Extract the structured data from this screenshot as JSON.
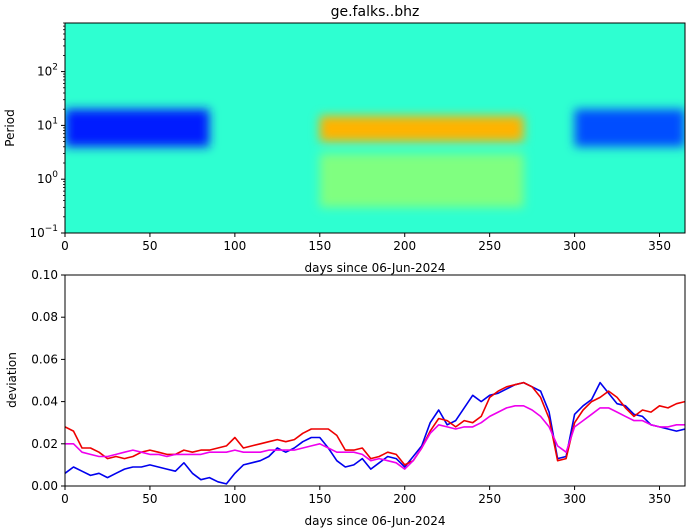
{
  "chart_data": [
    {
      "type": "heatmap",
      "title": "ge.falks..bhz",
      "xlabel": "days since 06-Jun-2024",
      "ylabel": "Period",
      "xlim": [
        0,
        365
      ],
      "ylim": [
        0.1,
        800
      ],
      "yscale": "log",
      "colormap": "jet",
      "x_ticks": [
        0,
        50,
        100,
        150,
        200,
        250,
        300,
        350
      ],
      "y_ticks": [
        {
          "value": 0.1,
          "base": "10",
          "exp": "−1"
        },
        {
          "value": 1,
          "base": "10",
          "exp": "0"
        },
        {
          "value": 10,
          "base": "10",
          "exp": "1"
        },
        {
          "value": 100,
          "base": "10",
          "exp": "2"
        }
      ],
      "features": [
        {
          "kind": "low",
          "x": [
            0,
            85
          ],
          "y": [
            4,
            20
          ],
          "level": 0.15
        },
        {
          "kind": "low",
          "x": [
            300,
            365
          ],
          "y": [
            4,
            20
          ],
          "level": 0.2
        },
        {
          "kind": "high",
          "x": [
            150,
            270
          ],
          "y": [
            5,
            15
          ],
          "level": 0.7
        },
        {
          "kind": "high",
          "x": [
            150,
            270
          ],
          "y": [
            0.3,
            3
          ],
          "level": 0.5
        }
      ]
    },
    {
      "type": "line",
      "xlabel": "days since 06-Jun-2024",
      "ylabel": "deviation",
      "xlim": [
        0,
        365
      ],
      "ylim": [
        0.0,
        0.1
      ],
      "x_ticks": [
        0,
        50,
        100,
        150,
        200,
        250,
        300,
        350
      ],
      "y_ticks": [
        "0.00",
        "0.02",
        "0.04",
        "0.06",
        "0.08",
        "0.10"
      ],
      "series": [
        {
          "color": "#0000ee",
          "x": [
            0,
            5,
            10,
            15,
            20,
            25,
            30,
            35,
            40,
            45,
            50,
            55,
            60,
            65,
            70,
            75,
            80,
            85,
            90,
            95,
            100,
            105,
            110,
            115,
            120,
            125,
            130,
            135,
            140,
            145,
            150,
            155,
            160,
            165,
            170,
            175,
            180,
            185,
            190,
            195,
            200,
            205,
            210,
            215,
            220,
            225,
            230,
            235,
            240,
            245,
            250,
            255,
            260,
            265,
            270,
            275,
            280,
            285,
            290,
            295,
            300,
            305,
            310,
            315,
            320,
            325,
            330,
            335,
            340,
            345,
            350,
            355,
            360,
            365
          ],
          "y": [
            0.006,
            0.009,
            0.007,
            0.005,
            0.006,
            0.004,
            0.006,
            0.008,
            0.009,
            0.009,
            0.01,
            0.009,
            0.008,
            0.007,
            0.011,
            0.006,
            0.003,
            0.004,
            0.002,
            0.001,
            0.006,
            0.01,
            0.011,
            0.012,
            0.014,
            0.018,
            0.016,
            0.018,
            0.021,
            0.023,
            0.023,
            0.018,
            0.012,
            0.009,
            0.01,
            0.013,
            0.008,
            0.011,
            0.014,
            0.013,
            0.009,
            0.014,
            0.019,
            0.03,
            0.036,
            0.029,
            0.031,
            0.037,
            0.043,
            0.04,
            0.043,
            0.044,
            0.046,
            0.048,
            0.049,
            0.047,
            0.045,
            0.035,
            0.013,
            0.014,
            0.034,
            0.038,
            0.041,
            0.049,
            0.044,
            0.039,
            0.038,
            0.034,
            0.033,
            0.029,
            0.028,
            0.027,
            0.026,
            0.027
          ]
        },
        {
          "color": "#ee0000",
          "x": [
            0,
            5,
            10,
            15,
            20,
            25,
            30,
            35,
            40,
            45,
            50,
            55,
            60,
            65,
            70,
            75,
            80,
            85,
            90,
            95,
            100,
            105,
            110,
            115,
            120,
            125,
            130,
            135,
            140,
            145,
            150,
            155,
            160,
            165,
            170,
            175,
            180,
            185,
            190,
            195,
            200,
            205,
            210,
            215,
            220,
            225,
            230,
            235,
            240,
            245,
            250,
            255,
            260,
            265,
            270,
            275,
            280,
            285,
            290,
            295,
            300,
            305,
            310,
            315,
            320,
            325,
            330,
            335,
            340,
            345,
            350,
            355,
            360,
            365
          ],
          "y": [
            0.028,
            0.026,
            0.018,
            0.018,
            0.016,
            0.013,
            0.014,
            0.013,
            0.014,
            0.016,
            0.017,
            0.016,
            0.015,
            0.015,
            0.017,
            0.016,
            0.017,
            0.017,
            0.018,
            0.019,
            0.023,
            0.018,
            0.019,
            0.02,
            0.021,
            0.022,
            0.021,
            0.022,
            0.025,
            0.027,
            0.027,
            0.027,
            0.024,
            0.017,
            0.017,
            0.018,
            0.013,
            0.014,
            0.016,
            0.015,
            0.01,
            0.012,
            0.018,
            0.026,
            0.032,
            0.031,
            0.028,
            0.031,
            0.03,
            0.033,
            0.042,
            0.045,
            0.047,
            0.048,
            0.049,
            0.047,
            0.042,
            0.032,
            0.012,
            0.013,
            0.03,
            0.036,
            0.04,
            0.042,
            0.045,
            0.042,
            0.037,
            0.033,
            0.036,
            0.035,
            0.038,
            0.037,
            0.039,
            0.04
          ]
        },
        {
          "color": "#ee00ee",
          "x": [
            0,
            5,
            10,
            15,
            20,
            25,
            30,
            35,
            40,
            45,
            50,
            55,
            60,
            65,
            70,
            75,
            80,
            85,
            90,
            95,
            100,
            105,
            110,
            115,
            120,
            125,
            130,
            135,
            140,
            145,
            150,
            155,
            160,
            165,
            170,
            175,
            180,
            185,
            190,
            195,
            200,
            205,
            210,
            215,
            220,
            225,
            230,
            235,
            240,
            245,
            250,
            255,
            260,
            265,
            270,
            275,
            280,
            285,
            290,
            295,
            300,
            305,
            310,
            315,
            320,
            325,
            330,
            335,
            340,
            345,
            350,
            355,
            360,
            365
          ],
          "y": [
            0.02,
            0.02,
            0.016,
            0.015,
            0.014,
            0.014,
            0.015,
            0.016,
            0.017,
            0.016,
            0.015,
            0.015,
            0.014,
            0.015,
            0.015,
            0.015,
            0.015,
            0.016,
            0.016,
            0.016,
            0.017,
            0.016,
            0.016,
            0.016,
            0.017,
            0.017,
            0.017,
            0.017,
            0.018,
            0.019,
            0.02,
            0.018,
            0.016,
            0.016,
            0.016,
            0.015,
            0.012,
            0.013,
            0.012,
            0.011,
            0.008,
            0.012,
            0.018,
            0.025,
            0.029,
            0.028,
            0.027,
            0.028,
            0.028,
            0.03,
            0.033,
            0.035,
            0.037,
            0.038,
            0.038,
            0.036,
            0.033,
            0.028,
            0.019,
            0.016,
            0.028,
            0.031,
            0.034,
            0.037,
            0.037,
            0.035,
            0.033,
            0.031,
            0.031,
            0.029,
            0.028,
            0.028,
            0.029,
            0.029
          ]
        }
      ]
    }
  ]
}
